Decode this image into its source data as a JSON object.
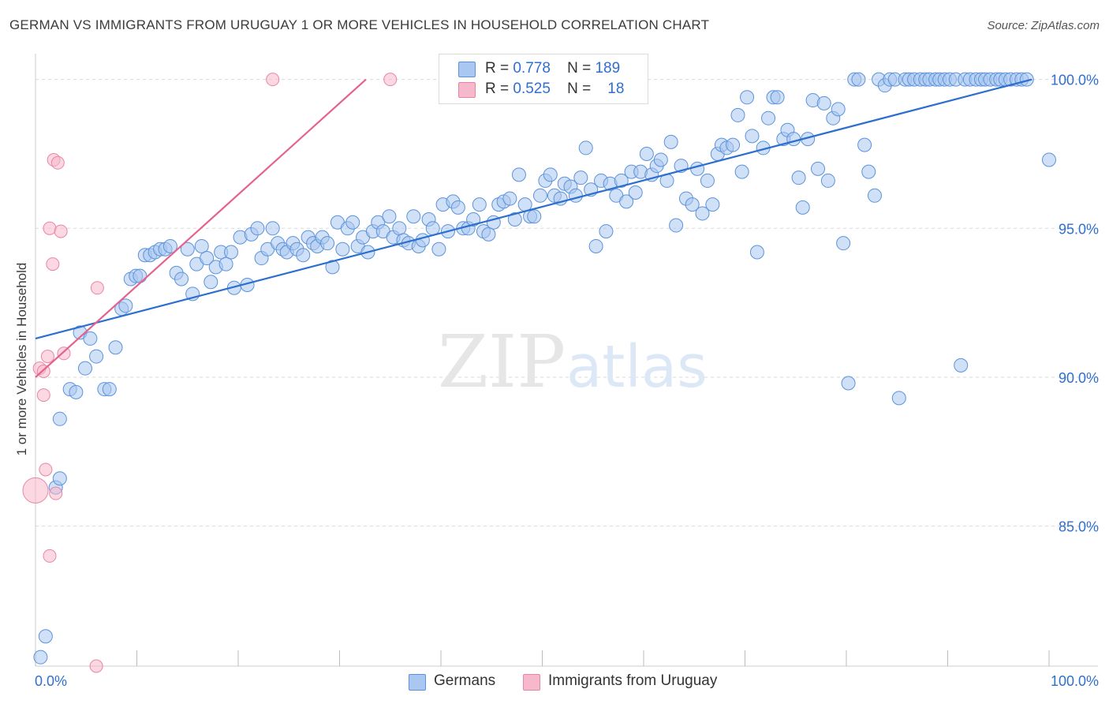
{
  "title": "GERMAN VS IMMIGRANTS FROM URUGUAY 1 OR MORE VEHICLES IN HOUSEHOLD CORRELATION CHART",
  "source": "Source: ZipAtlas.com",
  "watermark": {
    "zip": "ZIP",
    "atlas": "atlas"
  },
  "legend": {
    "r_label": "R =",
    "n_label": "N =",
    "rows": [
      {
        "r": "0.778",
        "n": "189",
        "color": "#a9c7f0"
      },
      {
        "r": "0.525",
        "n": "18",
        "color": "#f7b8cb"
      }
    ]
  },
  "bottom_legend": [
    {
      "label": "Germans",
      "color": "#a9c7f0"
    },
    {
      "label": "Immigrants from Uruguay",
      "color": "#f7b8cb"
    }
  ],
  "colors": {
    "blue_fill": "#a9c7f0",
    "blue_stroke": "#5b93db",
    "blue_line": "#2c6fcf",
    "pink_fill": "#f7b8cb",
    "pink_stroke": "#e885a6",
    "pink_line": "#e5628d",
    "tick_text": "#2f6fd0",
    "grid": "#d9d9d9"
  },
  "chart_data": {
    "type": "scatter",
    "title": "GERMAN VS IMMIGRANTS FROM URUGUAY 1 OR MORE VEHICLES IN HOUSEHOLD CORRELATION CHART",
    "xlabel": "",
    "ylabel": "1 or more Vehicles in Household",
    "xlim": [
      0,
      100
    ],
    "ylim": [
      80.3,
      100.6
    ],
    "x_tick_labels": [
      {
        "value": 0,
        "label": "0.0%"
      },
      {
        "value": 100,
        "label": "100.0%"
      }
    ],
    "y_ticks": [
      {
        "value": 85,
        "label": "85.0%"
      },
      {
        "value": 90,
        "label": "90.0%"
      },
      {
        "value": 95,
        "label": "95.0%"
      },
      {
        "value": 100,
        "label": "100.0%"
      }
    ],
    "grid": true,
    "series": [
      {
        "name": "Germans",
        "color": "#a9c7f0",
        "trend": [
          [
            0,
            91.3
          ],
          [
            98.3,
            100.0
          ]
        ],
        "points": [
          [
            0.5,
            80.6
          ],
          [
            1.0,
            81.3
          ],
          [
            2.0,
            86.3
          ],
          [
            2.4,
            86.6
          ],
          [
            2.4,
            88.6
          ],
          [
            3.4,
            89.6
          ],
          [
            4.0,
            89.5
          ],
          [
            4.4,
            91.5
          ],
          [
            4.9,
            90.3
          ],
          [
            5.4,
            91.3
          ],
          [
            6.0,
            90.7
          ],
          [
            6.8,
            89.6
          ],
          [
            7.3,
            89.6
          ],
          [
            7.9,
            91.0
          ],
          [
            8.5,
            92.3
          ],
          [
            8.9,
            92.4
          ],
          [
            9.4,
            93.3
          ],
          [
            9.9,
            93.4
          ],
          [
            10.3,
            93.4
          ],
          [
            10.8,
            94.1
          ],
          [
            11.3,
            94.1
          ],
          [
            11.8,
            94.2
          ],
          [
            12.3,
            94.3
          ],
          [
            12.8,
            94.3
          ],
          [
            13.3,
            94.4
          ],
          [
            13.9,
            93.5
          ],
          [
            14.4,
            93.3
          ],
          [
            15.0,
            94.3
          ],
          [
            15.5,
            92.8
          ],
          [
            15.9,
            93.8
          ],
          [
            16.4,
            94.4
          ],
          [
            16.9,
            94.0
          ],
          [
            17.3,
            93.2
          ],
          [
            17.8,
            93.7
          ],
          [
            18.3,
            94.2
          ],
          [
            18.8,
            93.8
          ],
          [
            19.3,
            94.2
          ],
          [
            19.6,
            93.0
          ],
          [
            20.2,
            94.7
          ],
          [
            20.9,
            93.1
          ],
          [
            21.3,
            94.8
          ],
          [
            21.9,
            95.0
          ],
          [
            22.3,
            94.0
          ],
          [
            22.9,
            94.3
          ],
          [
            23.4,
            95.0
          ],
          [
            23.9,
            94.5
          ],
          [
            24.4,
            94.3
          ],
          [
            24.8,
            94.2
          ],
          [
            25.4,
            94.5
          ],
          [
            25.8,
            94.3
          ],
          [
            26.4,
            94.1
          ],
          [
            26.9,
            94.7
          ],
          [
            27.4,
            94.5
          ],
          [
            27.8,
            94.4
          ],
          [
            28.3,
            94.7
          ],
          [
            28.8,
            94.5
          ],
          [
            29.3,
            93.7
          ],
          [
            29.8,
            95.2
          ],
          [
            30.3,
            94.3
          ],
          [
            30.8,
            95.0
          ],
          [
            31.3,
            95.2
          ],
          [
            31.8,
            94.4
          ],
          [
            32.3,
            94.7
          ],
          [
            32.8,
            94.2
          ],
          [
            33.3,
            94.9
          ],
          [
            33.8,
            95.2
          ],
          [
            34.3,
            94.9
          ],
          [
            34.9,
            95.4
          ],
          [
            35.3,
            94.7
          ],
          [
            35.9,
            95.0
          ],
          [
            36.3,
            94.6
          ],
          [
            36.8,
            94.5
          ],
          [
            37.3,
            95.4
          ],
          [
            37.8,
            94.4
          ],
          [
            38.2,
            94.6
          ],
          [
            38.8,
            95.3
          ],
          [
            39.2,
            95.0
          ],
          [
            39.8,
            94.3
          ],
          [
            40.2,
            95.8
          ],
          [
            40.7,
            94.9
          ],
          [
            41.2,
            95.9
          ],
          [
            41.7,
            95.7
          ],
          [
            42.2,
            95.0
          ],
          [
            42.7,
            95.0
          ],
          [
            43.2,
            95.3
          ],
          [
            43.8,
            95.8
          ],
          [
            44.2,
            94.9
          ],
          [
            44.7,
            94.8
          ],
          [
            45.2,
            95.2
          ],
          [
            45.7,
            95.8
          ],
          [
            46.2,
            95.9
          ],
          [
            46.8,
            96.0
          ],
          [
            47.3,
            95.3
          ],
          [
            47.7,
            96.8
          ],
          [
            48.3,
            95.8
          ],
          [
            48.8,
            95.4
          ],
          [
            49.2,
            95.4
          ],
          [
            49.8,
            96.1
          ],
          [
            50.3,
            96.6
          ],
          [
            50.8,
            96.8
          ],
          [
            51.2,
            96.1
          ],
          [
            51.8,
            96.0
          ],
          [
            52.2,
            96.5
          ],
          [
            52.8,
            96.4
          ],
          [
            53.3,
            96.1
          ],
          [
            53.8,
            96.7
          ],
          [
            54.3,
            97.7
          ],
          [
            54.8,
            96.3
          ],
          [
            55.3,
            94.4
          ],
          [
            55.8,
            96.6
          ],
          [
            56.3,
            94.9
          ],
          [
            56.7,
            96.5
          ],
          [
            57.3,
            96.1
          ],
          [
            57.8,
            96.6
          ],
          [
            58.3,
            95.9
          ],
          [
            58.8,
            96.9
          ],
          [
            59.2,
            96.2
          ],
          [
            59.7,
            96.9
          ],
          [
            60.3,
            97.5
          ],
          [
            60.8,
            96.8
          ],
          [
            61.3,
            97.1
          ],
          [
            61.7,
            97.3
          ],
          [
            62.3,
            96.6
          ],
          [
            62.7,
            97.9
          ],
          [
            63.2,
            95.1
          ],
          [
            63.7,
            97.1
          ],
          [
            64.2,
            96.0
          ],
          [
            64.8,
            95.8
          ],
          [
            65.3,
            97.0
          ],
          [
            65.8,
            95.5
          ],
          [
            66.3,
            96.6
          ],
          [
            66.8,
            95.8
          ],
          [
            67.3,
            97.5
          ],
          [
            67.7,
            97.8
          ],
          [
            68.2,
            97.7
          ],
          [
            68.8,
            97.8
          ],
          [
            69.3,
            98.8
          ],
          [
            69.7,
            96.9
          ],
          [
            70.2,
            99.4
          ],
          [
            70.7,
            98.1
          ],
          [
            71.2,
            94.2
          ],
          [
            71.8,
            97.7
          ],
          [
            72.3,
            98.7
          ],
          [
            72.8,
            99.4
          ],
          [
            73.2,
            99.4
          ],
          [
            73.8,
            98.0
          ],
          [
            74.2,
            98.3
          ],
          [
            74.8,
            98.0
          ],
          [
            75.3,
            96.7
          ],
          [
            75.7,
            95.7
          ],
          [
            76.2,
            98.0
          ],
          [
            76.7,
            99.3
          ],
          [
            77.2,
            97.0
          ],
          [
            77.8,
            99.2
          ],
          [
            78.2,
            96.6
          ],
          [
            78.7,
            98.7
          ],
          [
            79.2,
            99.0
          ],
          [
            79.7,
            94.5
          ],
          [
            80.2,
            89.8
          ],
          [
            80.8,
            100.0
          ],
          [
            81.2,
            100.0
          ],
          [
            81.8,
            97.8
          ],
          [
            82.2,
            96.9
          ],
          [
            82.8,
            96.1
          ],
          [
            83.2,
            100.0
          ],
          [
            83.8,
            99.8
          ],
          [
            84.3,
            100.0
          ],
          [
            84.8,
            100.0
          ],
          [
            85.2,
            89.3
          ],
          [
            85.8,
            100.0
          ],
          [
            86.2,
            100.0
          ],
          [
            86.7,
            100.0
          ],
          [
            87.3,
            100.0
          ],
          [
            87.8,
            100.0
          ],
          [
            88.2,
            100.0
          ],
          [
            88.8,
            100.0
          ],
          [
            89.2,
            100.0
          ],
          [
            89.7,
            100.0
          ],
          [
            90.2,
            100.0
          ],
          [
            90.8,
            100.0
          ],
          [
            91.3,
            90.4
          ],
          [
            91.7,
            100.0
          ],
          [
            92.2,
            100.0
          ],
          [
            92.8,
            100.0
          ],
          [
            93.3,
            100.0
          ],
          [
            93.7,
            100.0
          ],
          [
            94.2,
            100.0
          ],
          [
            94.8,
            100.0
          ],
          [
            95.2,
            100.0
          ],
          [
            95.7,
            100.0
          ],
          [
            96.2,
            100.0
          ],
          [
            96.8,
            100.0
          ],
          [
            97.3,
            100.0
          ],
          [
            97.8,
            100.0
          ],
          [
            100.0,
            97.3
          ]
        ]
      },
      {
        "name": "Immigrants from Uruguay",
        "color": "#f7b8cb",
        "trend": [
          [
            0,
            90.0
          ],
          [
            32.6,
            100.0
          ]
        ],
        "points": [
          [
            0.0,
            86.2
          ],
          [
            0.4,
            90.3
          ],
          [
            0.8,
            90.2
          ],
          [
            0.8,
            89.4
          ],
          [
            1.0,
            86.9
          ],
          [
            1.2,
            90.7
          ],
          [
            1.4,
            95.0
          ],
          [
            1.4,
            84.0
          ],
          [
            1.7,
            93.8
          ],
          [
            1.8,
            97.3
          ],
          [
            2.0,
            86.1
          ],
          [
            2.2,
            97.2
          ],
          [
            2.5,
            94.9
          ],
          [
            2.8,
            90.8
          ],
          [
            6.1,
            93.0
          ],
          [
            6.0,
            80.3
          ],
          [
            23.4,
            100.0
          ],
          [
            35.0,
            100.0
          ]
        ]
      }
    ]
  }
}
